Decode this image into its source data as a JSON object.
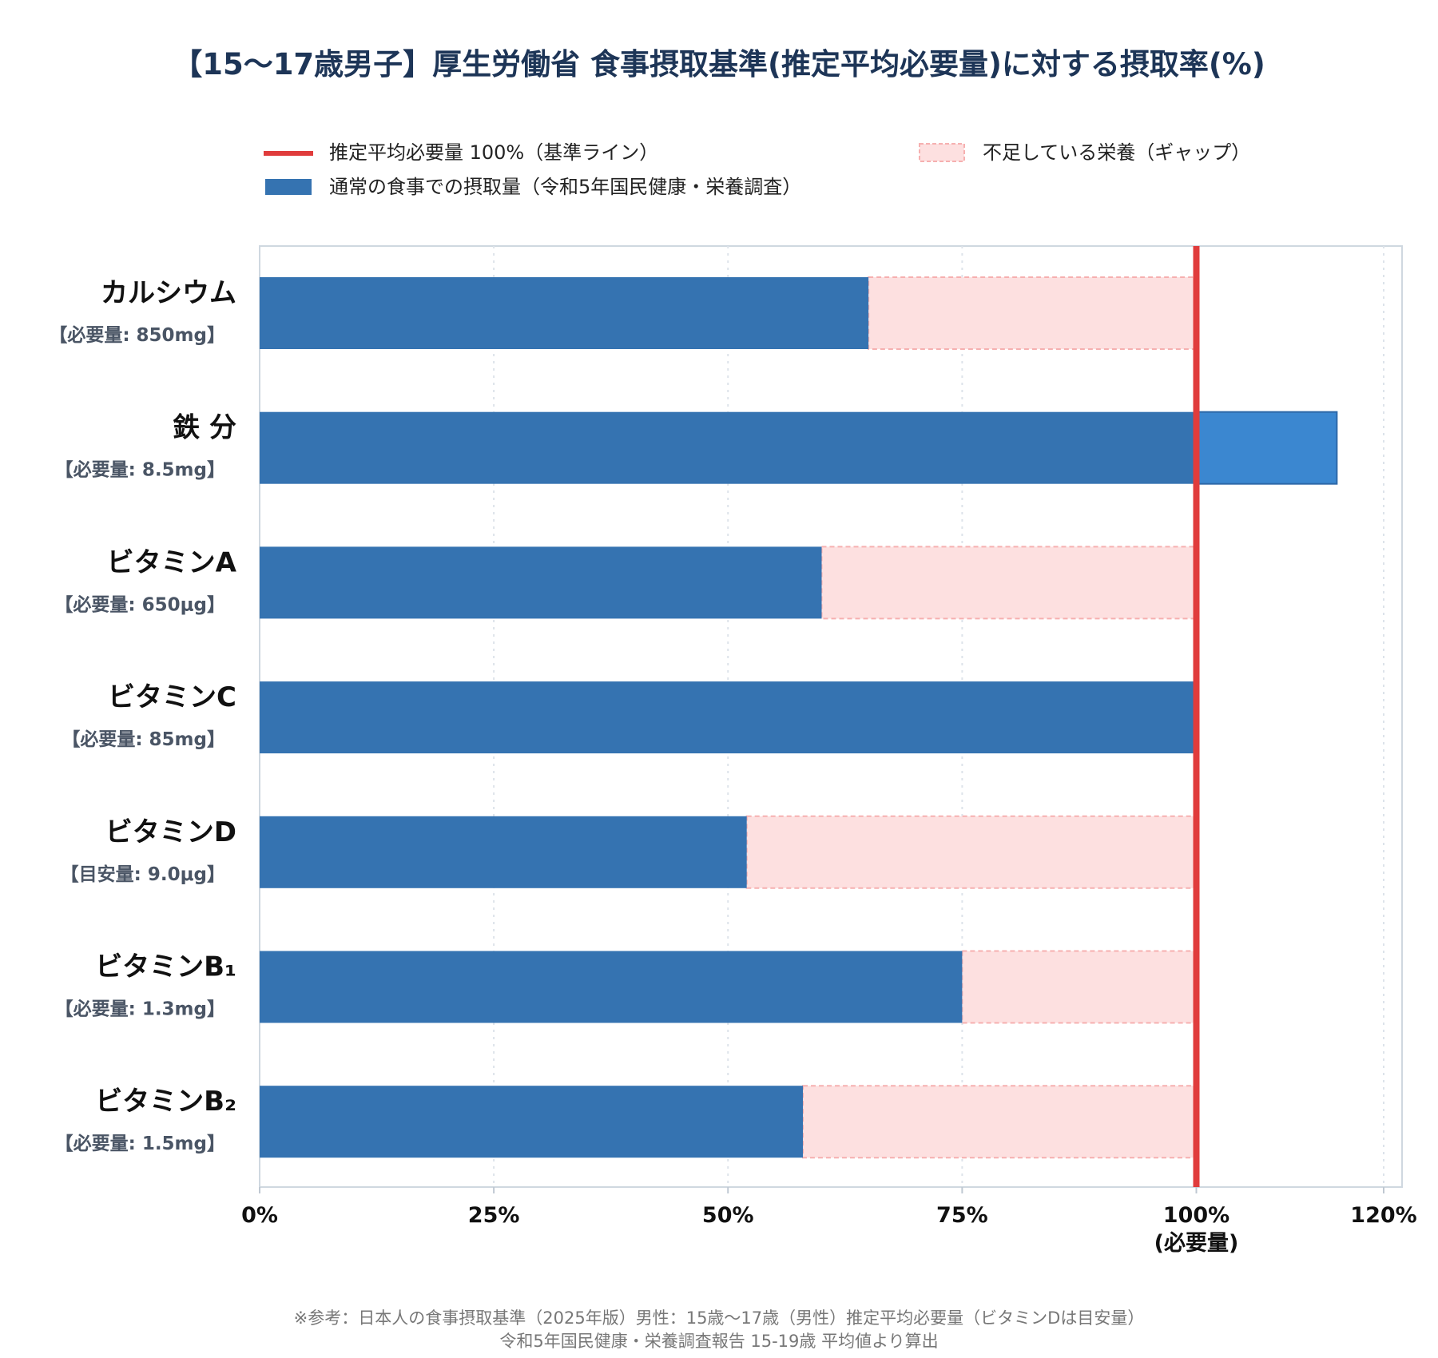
{
  "chart_data": {
    "type": "bar",
    "orientation": "horizontal",
    "title": "【15〜17歳男子】厚生労働省 食事摂取基準(推定平均必要量)に対する摂取率(%)",
    "legend": {
      "placement": "top",
      "items": [
        {
          "label": "推定平均必要量 100%（基準ライン）",
          "color": "#e03c3c",
          "kind": "line"
        },
        {
          "label": "不足している栄養（ギャップ）",
          "color": "#fde0e0",
          "kind": "gap"
        },
        {
          "label": "通常の食事での摂取量（令和5年国民健康・栄養調査）",
          "color": "#3573b1",
          "kind": "bar"
        }
      ]
    },
    "categories": [
      {
        "name": "カルシウム",
        "sub": "【必要量: 850mg】"
      },
      {
        "name": "鉄 分",
        "sub": "【必要量: 8.5mg】"
      },
      {
        "name": "ビタミンA",
        "sub": "【必要量: 650μg】"
      },
      {
        "name": "ビタミンC",
        "sub": "【必要量: 85mg】"
      },
      {
        "name": "ビタミンD",
        "sub": "【目安量: 9.0μg】"
      },
      {
        "name": "ビタミンB₁",
        "sub": "【必要量: 1.3mg】"
      },
      {
        "name": "ビタミンB₂",
        "sub": "【必要量: 1.5mg】"
      }
    ],
    "values": [
      65,
      115,
      60,
      100,
      52,
      75,
      58
    ],
    "reference_line": 100,
    "xlim": [
      0,
      120
    ],
    "x_ticks": [
      {
        "value": 0,
        "label": "0%"
      },
      {
        "value": 25,
        "label": "25%"
      },
      {
        "value": 50,
        "label": "50%"
      },
      {
        "value": 75,
        "label": "75%"
      },
      {
        "value": 100,
        "label": "100%"
      },
      {
        "value": 120,
        "label": "120%"
      }
    ],
    "reference_tick_sub": "(必要量)",
    "grid": "vertical-dotted",
    "colors": {
      "bar": "#3573b1",
      "bar_excess": "#3b87d0",
      "gap": "#fde0e0",
      "gap_border": "#f6b0b0",
      "reference": "#e03c3c",
      "title": "#1d3557"
    }
  },
  "footnote": {
    "line1": "※参考：日本人の食事摂取基準（2025年版）男性：15歳〜17歳（男性）推定平均必要量（ビタミンDは目安量）",
    "line2": "令和5年国民健康・栄養調査報告 15-19歳 平均値より算出"
  }
}
